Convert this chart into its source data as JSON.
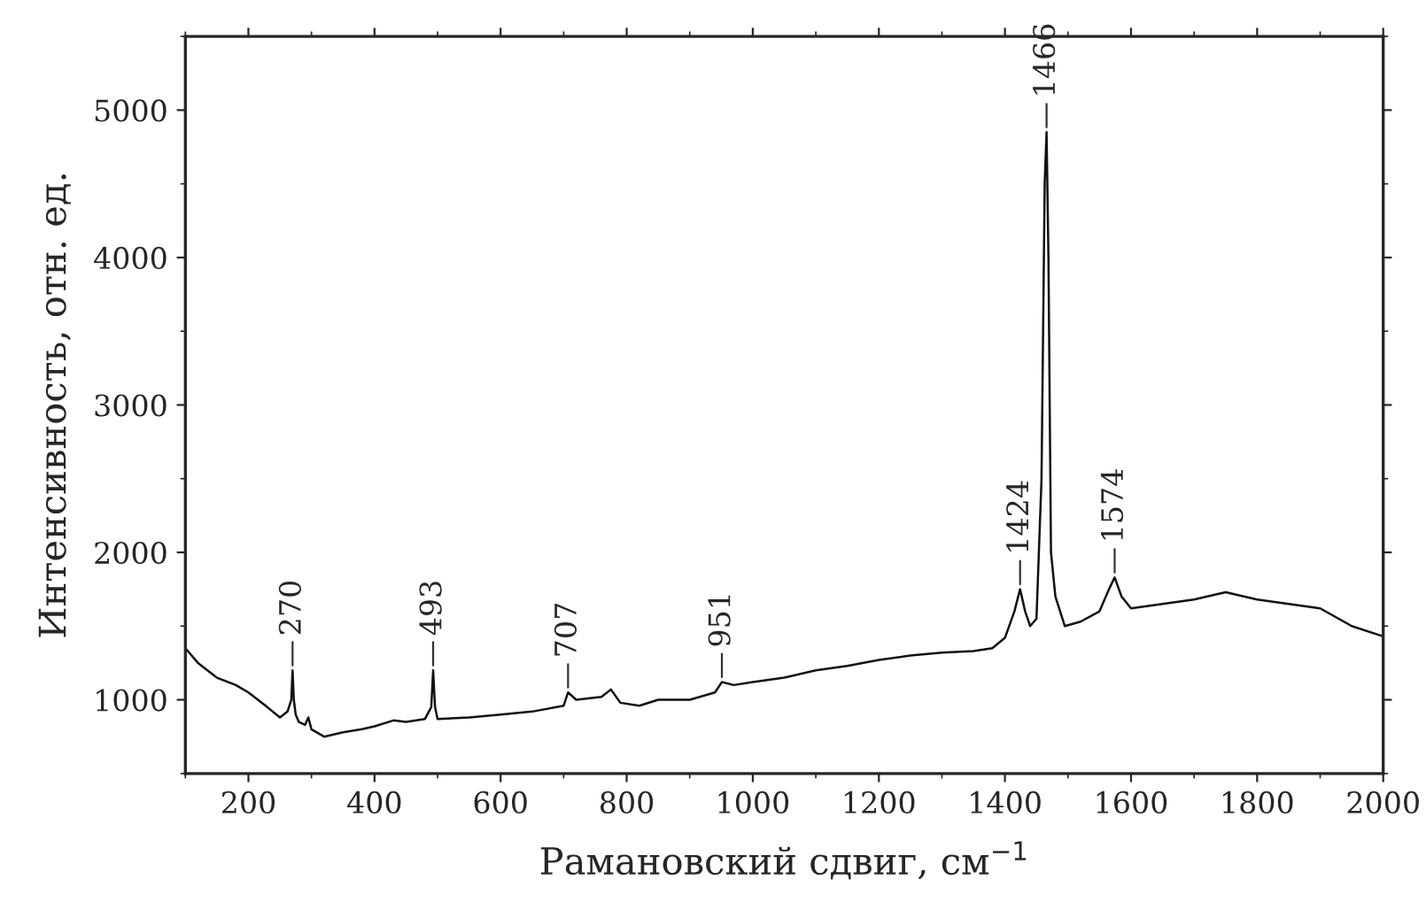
{
  "chart_data": {
    "type": "line",
    "xlabel": "Рамановский сдвиг, см$^{−1}$",
    "ylabel": "Интенсивность, отн. ед.",
    "xlim": [
      100,
      2000
    ],
    "ylim": [
      500,
      5500
    ],
    "xticks": [
      200,
      400,
      600,
      800,
      1000,
      1200,
      1400,
      1600,
      1800,
      2000
    ],
    "yticks": [
      1000,
      2000,
      3000,
      4000,
      5000
    ],
    "grid": false,
    "legend": false,
    "marker": "none",
    "line_style": "solid",
    "series": [
      {
        "color": "#111111",
        "x": [
          100,
          120,
          150,
          180,
          200,
          230,
          250,
          262,
          268,
          270,
          272,
          275,
          280,
          290,
          295,
          300,
          320,
          350,
          380,
          400,
          430,
          450,
          480,
          490,
          493,
          496,
          500,
          550,
          600,
          650,
          700,
          707,
          720,
          760,
          775,
          790,
          820,
          850,
          900,
          940,
          951,
          970,
          1000,
          1050,
          1100,
          1150,
          1200,
          1250,
          1300,
          1350,
          1380,
          1400,
          1415,
          1424,
          1432,
          1440,
          1450,
          1458,
          1463,
          1466,
          1469,
          1473,
          1480,
          1495,
          1520,
          1550,
          1565,
          1574,
          1585,
          1600,
          1650,
          1700,
          1750,
          1800,
          1850,
          1900,
          1950,
          2000
        ],
        "values": [
          1350,
          1250,
          1150,
          1100,
          1050,
          950,
          880,
          920,
          1000,
          1200,
          1000,
          900,
          850,
          830,
          880,
          800,
          750,
          780,
          800,
          820,
          860,
          850,
          870,
          950,
          1200,
          950,
          870,
          880,
          900,
          920,
          960,
          1050,
          1000,
          1020,
          1070,
          980,
          960,
          1000,
          1000,
          1050,
          1120,
          1100,
          1120,
          1150,
          1200,
          1230,
          1270,
          1300,
          1320,
          1330,
          1350,
          1420,
          1600,
          1750,
          1600,
          1500,
          1550,
          2500,
          4500,
          4850,
          4000,
          2000,
          1700,
          1500,
          1530,
          1600,
          1750,
          1830,
          1700,
          1620,
          1650,
          1680,
          1730,
          1680,
          1650,
          1620,
          1500,
          1430
        ]
      }
    ],
    "annotations": [
      {
        "text": "270",
        "x": 270,
        "y": 1200
      },
      {
        "text": "493",
        "x": 493,
        "y": 1200
      },
      {
        "text": "707",
        "x": 707,
        "y": 1050
      },
      {
        "text": "951",
        "x": 951,
        "y": 1120
      },
      {
        "text": "1424",
        "x": 1424,
        "y": 1750
      },
      {
        "text": "1466",
        "x": 1466,
        "y": 4850
      },
      {
        "text": "1574",
        "x": 1574,
        "y": 1830
      }
    ]
  }
}
